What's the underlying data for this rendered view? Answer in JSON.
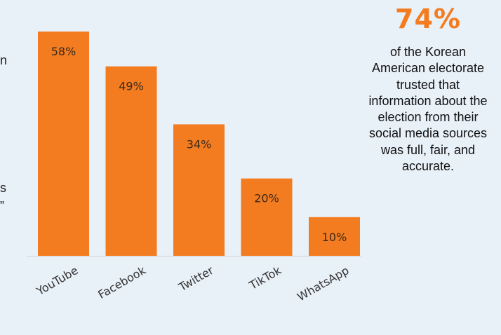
{
  "chart_data": {
    "type": "bar",
    "categories": [
      "YouTube",
      "Facebook",
      "Twitter",
      "TikTok",
      "WhatsApp"
    ],
    "values": [
      58,
      49,
      34,
      20,
      10
    ],
    "data_labels": [
      "58%",
      "49%",
      "34%",
      "20%",
      "10%"
    ],
    "ylim": [
      0,
      58
    ],
    "grid": false,
    "bar_color": "#f47c20"
  },
  "callout": {
    "stat": "74%",
    "text": "of the Korean American electorate trusted that information about the election from their social media sources was full, fair, and accurate."
  },
  "edge_fragments": [
    "n",
    "s",
    "”"
  ]
}
